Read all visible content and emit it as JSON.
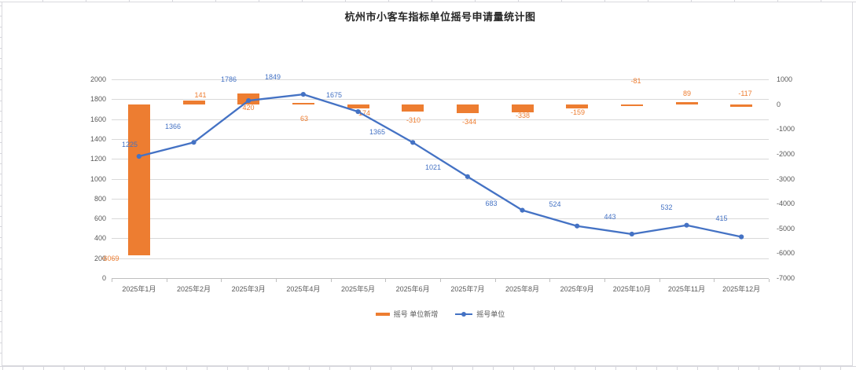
{
  "title": "杭州市小客车指标单位摇号申请量统计图",
  "colors": {
    "bar": "#ed7d31",
    "line": "#4472c4",
    "grid": "#d9d9d9",
    "axis_text": "#595959"
  },
  "legend": {
    "bar_label": "摇号 单位新增",
    "line_label": "摇号单位"
  },
  "chart_data": {
    "type": "combo",
    "title": "杭州市小客车指标单位摇号申请量统计图",
    "categories": [
      "2025年1月",
      "2025年2月",
      "2025年3月",
      "2025年4月",
      "2025年5月",
      "2025年6月",
      "2025年7月",
      "2025年8月",
      "2025年9月",
      "2025年10月",
      "2025年11月",
      "2025年12月"
    ],
    "series": [
      {
        "name": "摇号 单位新增",
        "type": "bar",
        "axis": "right",
        "color": "#ed7d31",
        "values": [
          -6069,
          141,
          420,
          63,
          -174,
          -310,
          -344,
          -338,
          -159,
          -81,
          89,
          -117
        ],
        "labels": [
          "-6069",
          "141",
          "420",
          "63",
          "-174",
          "-310",
          "-344",
          "-338",
          "-159",
          "-81",
          "89",
          "-117"
        ]
      },
      {
        "name": "摇号单位",
        "type": "line",
        "axis": "left",
        "color": "#4472c4",
        "values": [
          1225,
          1366,
          1786,
          1849,
          1675,
          1365,
          1021,
          683,
          524,
          443,
          532,
          415
        ],
        "labels": [
          "1225",
          "1366",
          "1786",
          "1849",
          "1675",
          "1365",
          "1021",
          "683",
          "524",
          "443",
          "532",
          "415"
        ]
      }
    ],
    "left_axis": {
      "min": 0,
      "max": 2000,
      "step": 200,
      "ticks": [
        "2000",
        "1800",
        "1600",
        "1400",
        "1200",
        "1000",
        "800",
        "600",
        "400",
        "200",
        "0"
      ]
    },
    "right_axis": {
      "min": -7000,
      "max": 1000,
      "step": 1000,
      "ticks": [
        "1000",
        "0",
        "-1000",
        "-2000",
        "-3000",
        "-4000",
        "-5000",
        "-6000",
        "-7000"
      ]
    },
    "grid": true,
    "legend_position": "bottom"
  }
}
